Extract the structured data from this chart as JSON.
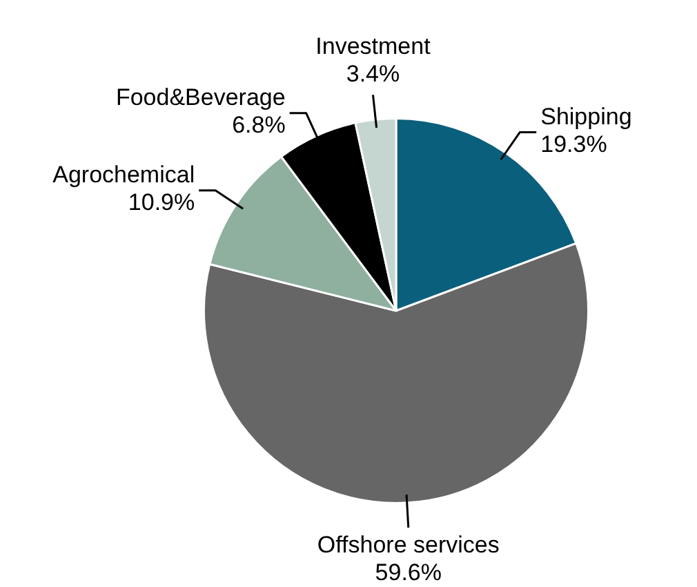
{
  "chart_data": {
    "type": "pie",
    "categories": [
      "Shipping",
      "Offshore services",
      "Agrochemical",
      "Food&Beverage",
      "Investment"
    ],
    "values": [
      19.3,
      59.6,
      10.9,
      6.8,
      3.4
    ],
    "value_labels": [
      "19.3%",
      "59.6%",
      "10.9%",
      "6.8%",
      "3.4%"
    ],
    "colors": [
      "#0a5f7c",
      "#666666",
      "#8faf9f",
      "#000000",
      "#c5d5d0"
    ],
    "legend": false
  }
}
